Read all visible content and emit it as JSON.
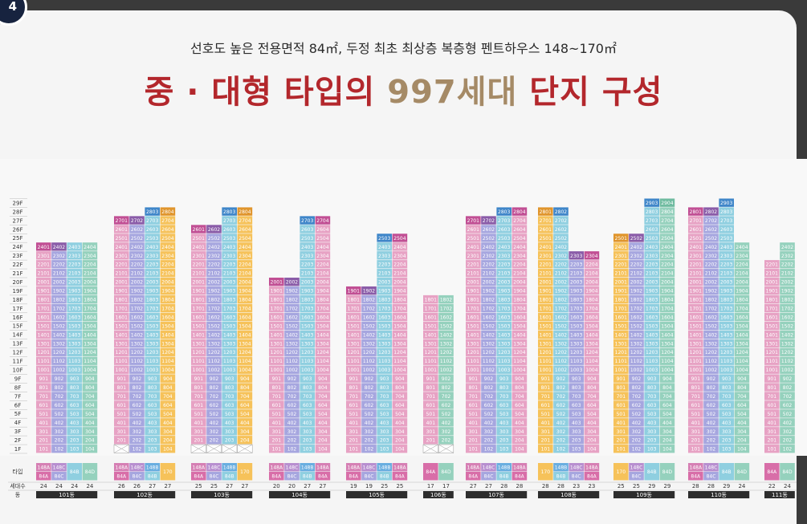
{
  "badge": "4",
  "subtitle": "선호도 높은 전용면적 84㎡, 두정 최초 최상층 복층형 펜트하우스 148~170㎡",
  "title_pre": "중 · 대형 타입의 ",
  "title_hl": "997세대",
  "title_post": " 단지 구성",
  "row_labels": {
    "type": "타입",
    "households": "세대수",
    "dong": "동"
  },
  "colors": {
    "84A": "#e7a2c4",
    "84A_dark": "#d86ea8",
    "84B": "#8fcfe0",
    "84C": "#a6a6df",
    "84D": "#95d1bd",
    "148A": "#d680b4",
    "148B": "#6aaee0",
    "148C": "#b88fd0",
    "170": "#f6c25a",
    "170_dark": "#e9a92c",
    "ph_148A": "#c14f94",
    "ph_148C": "#8a5ca8",
    "ph_148B": "#3f86c9",
    "ph_170": "#e0952c",
    "dong_bar": "#2d2d2d"
  },
  "floors": [
    "29F",
    "28F",
    "27F",
    "26F",
    "25F",
    "24F",
    "23F",
    "22F",
    "21F",
    "20F",
    "19F",
    "18F",
    "17F",
    "16F",
    "15F",
    "14F",
    "13F",
    "12F",
    "11F",
    "10F",
    "9F",
    "8F",
    "7F",
    "6F",
    "5F",
    "4F",
    "3F",
    "2F",
    "1F"
  ],
  "buildings": [
    {
      "dong": "101동",
      "cols": [
        {
          "line": "01",
          "type": "84A",
          "top": 24,
          "ph": "148A",
          "ph_label": "2401",
          "pilotis": 0
        },
        {
          "line": "02",
          "type": "84C",
          "top": 24,
          "ph": "148C",
          "ph_label": "2402",
          "pilotis": 0
        },
        {
          "line": "03",
          "type": "84B",
          "top": 24,
          "pilotis": 0
        },
        {
          "line": "04",
          "type": "84D",
          "top": 24,
          "pilotis": 0
        }
      ],
      "types": [
        [
          "148A",
          "84A"
        ],
        [
          "148C",
          "84C"
        ],
        [
          "84B"
        ],
        [
          "84D"
        ]
      ],
      "counts": [
        "24",
        "24",
        "24",
        "24"
      ]
    },
    {
      "dong": "102동",
      "cols": [
        {
          "line": "01",
          "type": "84A",
          "top": 27,
          "ph": "148A",
          "ph_label": "2701",
          "pilotis": 1
        },
        {
          "line": "02",
          "type": "84C",
          "top": 27,
          "ph": "148C",
          "ph_label": "2702",
          "pilotis": 0
        },
        {
          "line": "03",
          "type": "84B",
          "top": 28,
          "ph": "148B",
          "ph_label": "2803",
          "pilotis": 0
        },
        {
          "line": "04",
          "type": "170",
          "top": 28,
          "ph": "170",
          "ph_label": "2804",
          "pilotis": 0
        }
      ],
      "types": [
        [
          "148A",
          "84A"
        ],
        [
          "148C",
          "84C"
        ],
        [
          "148B",
          "84B"
        ],
        [
          "170"
        ]
      ],
      "counts": [
        "26",
        "26",
        "27",
        "27"
      ]
    },
    {
      "dong": "103동",
      "cols": [
        {
          "line": "01",
          "type": "84A",
          "top": 26,
          "ph": "148A",
          "ph_label": "2601",
          "pilotis": 1
        },
        {
          "line": "02",
          "type": "84C",
          "top": 26,
          "ph": "148C",
          "ph_label": "2602",
          "pilotis": 1
        },
        {
          "line": "03",
          "type": "84B",
          "top": 28,
          "ph": "148B",
          "ph_label": "2803",
          "pilotis": 1
        },
        {
          "line": "04",
          "type": "170",
          "top": 28,
          "ph": "170",
          "ph_label": "2804",
          "pilotis": 1
        }
      ],
      "types": [
        [
          "148A",
          "84A"
        ],
        [
          "148C",
          "84C"
        ],
        [
          "148B",
          "84B"
        ],
        [
          "170"
        ]
      ],
      "counts": [
        "25",
        "25",
        "27",
        "27"
      ]
    },
    {
      "dong": "104동",
      "cols": [
        {
          "line": "01",
          "type": "84A",
          "top": 20,
          "ph": "148A",
          "ph_label": "2001",
          "pilotis": 0
        },
        {
          "line": "02",
          "type": "84C",
          "top": 20,
          "ph": "148C",
          "ph_label": "2002",
          "pilotis": 0
        },
        {
          "line": "03",
          "type": "84B",
          "top": 27,
          "ph": "148B",
          "ph_label": "2703",
          "pilotis": 0
        },
        {
          "line": "04",
          "type": "84A",
          "top": 27,
          "ph": "148A",
          "ph_label": "2704",
          "pilotis": 0
        }
      ],
      "types": [
        [
          "148A",
          "84A"
        ],
        [
          "148C",
          "84C"
        ],
        [
          "148B",
          "84B"
        ],
        [
          "148A",
          "84A"
        ]
      ],
      "counts": [
        "20",
        "20",
        "27",
        "27"
      ]
    },
    {
      "dong": "105동",
      "cols": [
        {
          "line": "01",
          "type": "84A",
          "top": 19,
          "ph": "148A",
          "ph_label": "1901",
          "pilotis": 0
        },
        {
          "line": "02",
          "type": "84C",
          "top": 19,
          "ph": "148C",
          "ph_label": "1902",
          "pilotis": 0
        },
        {
          "line": "03",
          "type": "84B",
          "top": 25,
          "ph": "148B",
          "ph_label": "2503",
          "pilotis": 0
        },
        {
          "line": "04",
          "type": "84A",
          "top": 25,
          "ph": "148A",
          "ph_label": "2504",
          "pilotis": 0
        }
      ],
      "types": [
        [
          "148A",
          "84A"
        ],
        [
          "148C",
          "84C"
        ],
        [
          "148B",
          "84B"
        ],
        [
          "148A",
          "84A"
        ]
      ],
      "counts": [
        "19",
        "19",
        "25",
        "25"
      ]
    },
    {
      "dong": "106동",
      "cols": [
        {
          "line": "01",
          "type": "84A",
          "top": 18,
          "pilotis": 1
        },
        {
          "line": "02",
          "type": "84D",
          "top": 18,
          "pilotis": 1
        }
      ],
      "types": [
        [
          "84A"
        ],
        [
          "84D"
        ]
      ],
      "counts": [
        "17",
        "17"
      ]
    },
    {
      "dong": "107동",
      "cols": [
        {
          "line": "01",
          "type": "84A",
          "top": 27,
          "ph": "148A",
          "ph_label": "2701",
          "pilotis": 0
        },
        {
          "line": "02",
          "type": "84C",
          "top": 27,
          "ph": "148C",
          "ph_label": "2702",
          "pilotis": 0
        },
        {
          "line": "03",
          "type": "84B",
          "top": 28,
          "ph": "148B",
          "ph_label": "2803",
          "pilotis": 0
        },
        {
          "line": "04",
          "type": "84A",
          "top": 28,
          "ph": "148A",
          "ph_label": "2804",
          "pilotis": 0
        }
      ],
      "types": [
        [
          "148A",
          "84A"
        ],
        [
          "148C",
          "84C"
        ],
        [
          "148B",
          "84B"
        ],
        [
          "148A",
          "84A"
        ]
      ],
      "counts": [
        "27",
        "27",
        "28",
        "28"
      ]
    },
    {
      "dong": "108동",
      "cols": [
        {
          "line": "01",
          "type": "170",
          "top": 28,
          "ph": "170",
          "ph_label": "2801",
          "pilotis": 0
        },
        {
          "line": "02",
          "type": "84B",
          "top": 28,
          "ph": "148B",
          "ph_label": "2802",
          "pilotis": 0
        },
        {
          "line": "03",
          "type": "84C",
          "top": 23,
          "ph": "148C",
          "ph_label": "2303",
          "pilotis": 0
        },
        {
          "line": "04",
          "type": "84A",
          "top": 23,
          "ph": "148A",
          "ph_label": "2304",
          "pilotis": 0
        }
      ],
      "types": [
        [
          "170"
        ],
        [
          "148B",
          "84B"
        ],
        [
          "148C",
          "84C"
        ],
        [
          "148A",
          "84A"
        ]
      ],
      "counts": [
        "28",
        "28",
        "23",
        "23"
      ]
    },
    {
      "dong": "109동",
      "cols": [
        {
          "line": "01",
          "type": "170",
          "top": 25,
          "ph": "170",
          "ph_label": "2501",
          "pilotis": 0
        },
        {
          "line": "02",
          "type": "84C",
          "top": 25,
          "ph": "148C",
          "ph_label": "2502",
          "pilotis": 0
        },
        {
          "line": "03",
          "type": "84B",
          "top": 29,
          "ph": "84B",
          "ph_label": "2903",
          "pilotis": 0
        },
        {
          "line": "04",
          "type": "84D",
          "top": 29,
          "ph": "84D",
          "ph_label": "2904",
          "pilotis": 0
        }
      ],
      "types": [
        [
          "170"
        ],
        [
          "148C",
          "84C"
        ],
        [
          "84B"
        ],
        [
          "84D"
        ]
      ],
      "counts": [
        "25",
        "25",
        "29",
        "29"
      ]
    },
    {
      "dong": "110동",
      "cols": [
        {
          "line": "01",
          "type": "84A",
          "top": 28,
          "ph": "148A",
          "ph_label": "2801",
          "pilotis": 0
        },
        {
          "line": "02",
          "type": "84C",
          "top": 28,
          "ph": "148C",
          "ph_label": "2802",
          "pilotis": 0
        },
        {
          "line": "03",
          "type": "84B",
          "top": 29,
          "ph": "84B",
          "ph_label": "2903",
          "pilotis": 0
        },
        {
          "line": "04",
          "type": "84D",
          "top": 24,
          "pilotis": 0
        }
      ],
      "types": [
        [
          "148A",
          "84A"
        ],
        [
          "148C",
          "84C"
        ],
        [
          "84B"
        ],
        [
          "84D"
        ]
      ],
      "counts": [
        "28",
        "28",
        "29",
        "24"
      ]
    },
    {
      "dong": "111동",
      "cols": [
        {
          "line": "01",
          "type": "84A",
          "top": 22,
          "pilotis": 0
        },
        {
          "line": "02",
          "type": "84D",
          "top": 24,
          "pilotis": 0
        }
      ],
      "types": [
        [
          "84A"
        ],
        [
          "84D"
        ]
      ],
      "counts": [
        "22",
        "24"
      ]
    }
  ]
}
